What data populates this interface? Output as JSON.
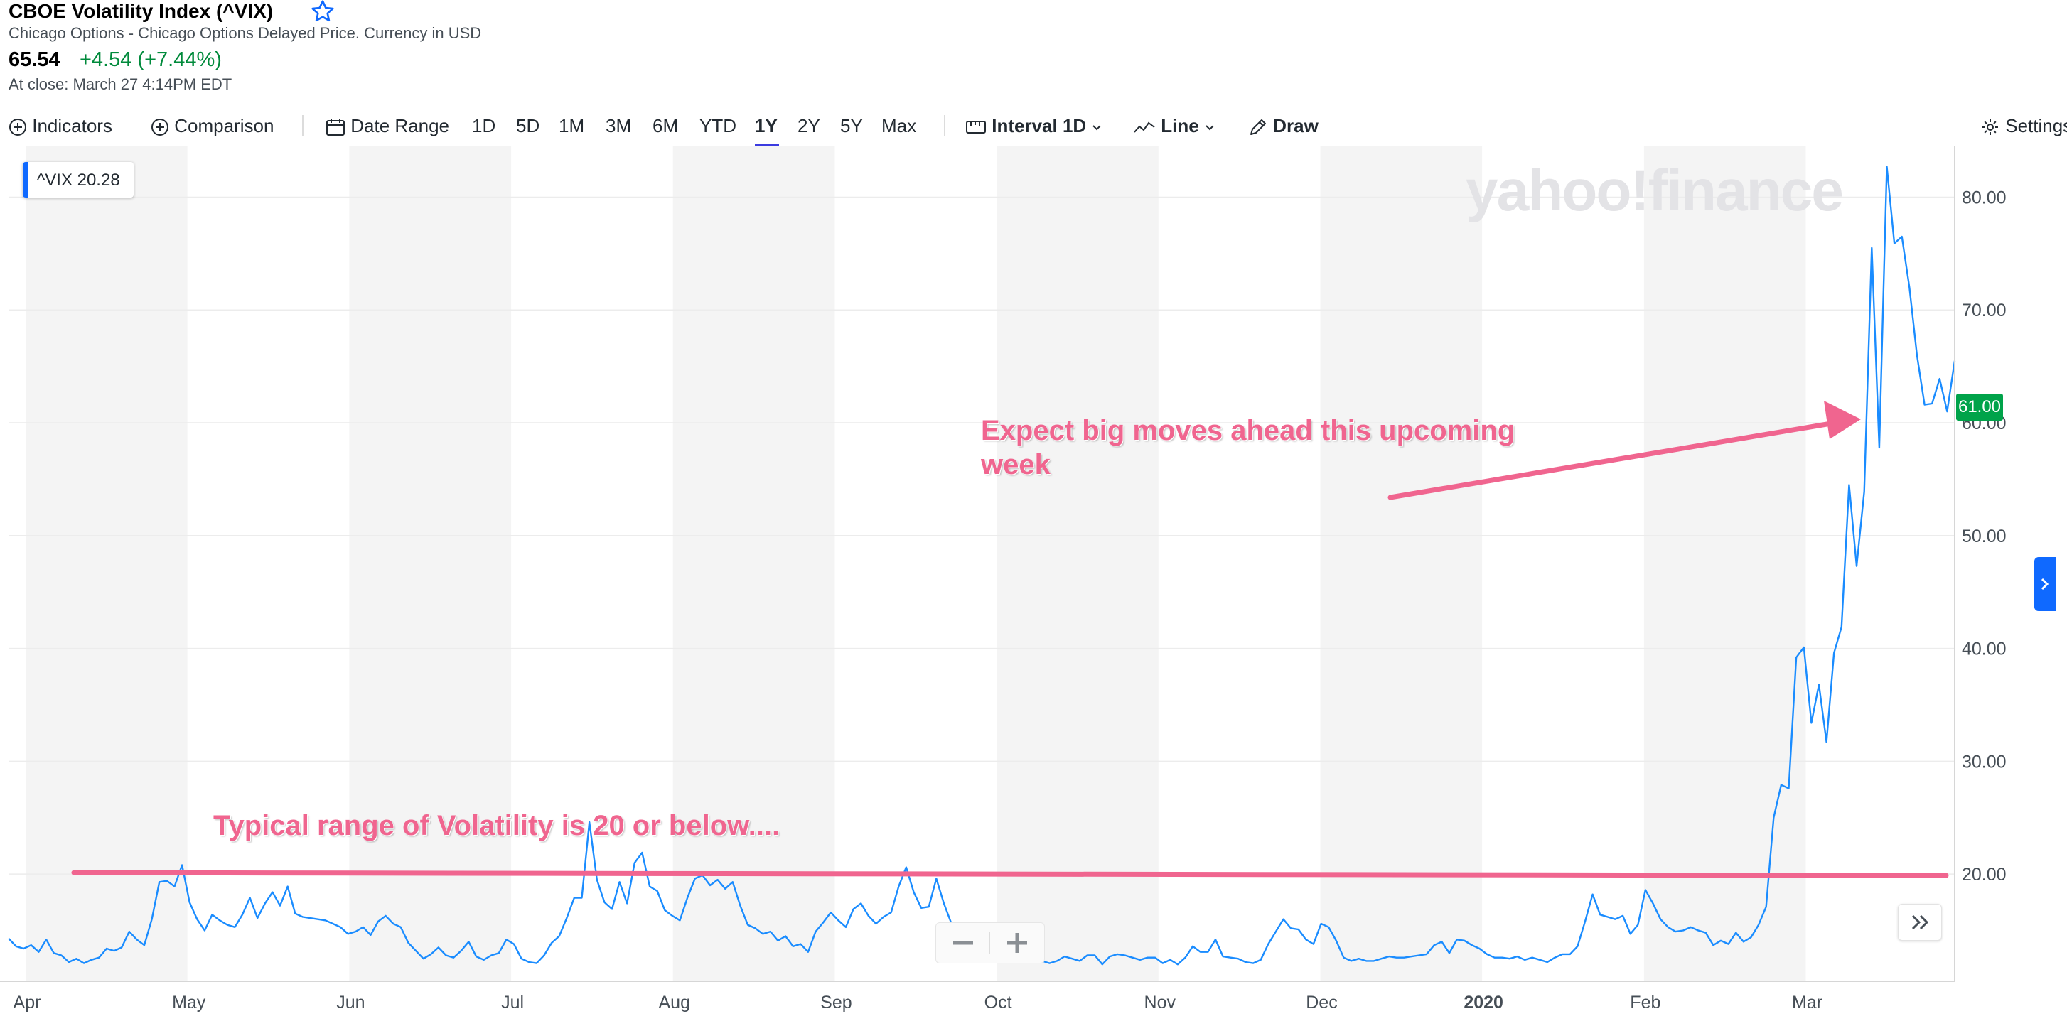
{
  "header": {
    "title": "CBOE Volatility Index (^VIX)",
    "subtitle": "Chicago Options - Chicago Options Delayed Price. Currency in USD",
    "price": "65.54",
    "change": "+4.54 (+7.44%)",
    "close_time": "At close: March 27 4:14PM EDT"
  },
  "toolbar": {
    "indicators": "Indicators",
    "comparison": "Comparison",
    "date_range": "Date Range",
    "ranges": [
      "1D",
      "5D",
      "1M",
      "3M",
      "6M",
      "YTD",
      "1Y",
      "2Y",
      "5Y",
      "Max"
    ],
    "active_range": "1Y",
    "interval_label": "Interval",
    "interval_value": "1D",
    "chart_type": "Line",
    "draw": "Draw",
    "settings": "Settings"
  },
  "legend": {
    "label": "^VIX 20.28"
  },
  "watermark": "yahoo!finance",
  "price_tag": "61.00",
  "annotations": {
    "upper": "Expect big moves ahead this upcoming week",
    "lower": "Typical range of Volatility is 20 or below...."
  },
  "colors": {
    "line": "#1a8cff",
    "annotation": "#f0658f",
    "up": "#008a3b",
    "accent": "#0f69ff"
  },
  "chart_data": {
    "type": "line",
    "x_labels": [
      "Apr",
      "May",
      "Jun",
      "Jul",
      "Aug",
      "Sep",
      "Oct",
      "Nov",
      "Dec",
      "2020",
      "Feb",
      "Mar"
    ],
    "y_ticks": [
      "20.00",
      "30.00",
      "40.00",
      "50.00",
      "60.00",
      "70.00",
      "80.00"
    ],
    "ylim": [
      10.5,
      84.5
    ],
    "reference_line": 20,
    "series": [
      {
        "values": [
          14.3,
          13.6,
          13.4,
          13.7,
          13.1,
          14.2,
          13.0,
          12.8,
          12.2,
          12.5,
          12.1,
          12.4,
          12.6,
          13.4,
          13.2,
          13.5,
          14.9,
          14.2,
          13.7,
          16.0,
          19.3,
          19.4,
          18.9,
          20.8,
          17.5,
          16.0,
          15.0,
          16.4,
          15.9,
          15.5,
          15.3,
          16.4,
          17.9,
          16.1,
          17.4,
          18.4,
          17.2,
          18.9,
          16.5,
          16.2,
          16.1,
          16.0,
          15.9,
          15.6,
          15.3,
          14.7,
          14.9,
          15.3,
          14.6,
          15.8,
          16.3,
          15.6,
          15.3,
          13.9,
          13.2,
          12.5,
          12.9,
          13.5,
          12.8,
          12.6,
          13.2,
          14.0,
          12.7,
          12.4,
          12.8,
          13.0,
          14.2,
          13.8,
          12.5,
          12.2,
          12.1,
          12.8,
          13.9,
          14.5,
          16.1,
          17.9,
          17.9,
          24.6,
          19.5,
          17.5,
          16.9,
          19.3,
          17.4,
          21.0,
          21.9,
          18.9,
          18.5,
          16.8,
          16.3,
          15.9,
          17.9,
          19.6,
          19.9,
          19.0,
          19.5,
          18.7,
          19.3,
          17.2,
          15.5,
          15.2,
          14.7,
          14.9,
          14.1,
          14.5,
          13.6,
          13.8,
          13.1,
          14.9,
          15.7,
          16.6,
          15.9,
          15.3,
          16.9,
          17.4,
          16.3,
          15.6,
          16.2,
          16.6,
          18.9,
          20.6,
          18.4,
          17.0,
          17.1,
          19.6,
          17.4,
          15.6,
          14.7,
          14.1,
          13.6,
          13.8,
          13.9,
          14.2,
          13.5,
          13.5,
          14.0,
          13.8,
          13.2,
          12.3,
          12.1,
          12.3,
          12.7,
          12.5,
          12.3,
          12.8,
          12.8,
          12.0,
          12.7,
          12.9,
          12.8,
          12.6,
          12.4,
          12.6,
          12.6,
          12.1,
          12.4,
          12.0,
          12.6,
          13.6,
          13.1,
          13.1,
          14.2,
          12.7,
          12.6,
          12.5,
          12.2,
          12.1,
          12.4,
          13.8,
          14.9,
          16.0,
          15.2,
          15.1,
          14.2,
          13.8,
          15.6,
          15.3,
          14.1,
          12.6,
          12.3,
          12.5,
          12.3,
          12.3,
          12.5,
          12.7,
          12.6,
          12.6,
          12.7,
          12.8,
          12.9,
          13.7,
          14.0,
          13.0,
          14.2,
          14.1,
          13.7,
          13.4,
          12.9,
          12.6,
          12.6,
          12.5,
          12.7,
          12.4,
          12.6,
          12.4,
          12.2,
          12.6,
          12.9,
          12.9,
          13.6,
          15.8,
          18.2,
          16.4,
          16.2,
          16.0,
          16.3,
          14.7,
          15.5,
          18.6,
          17.4,
          16.0,
          15.3,
          14.9,
          15.0,
          15.3,
          15.0,
          14.8,
          13.7,
          14.1,
          13.8,
          14.8,
          14.0,
          14.4,
          15.5,
          17.1,
          25.0,
          27.9,
          27.6,
          39.2,
          40.1,
          33.4,
          36.8,
          31.7,
          39.6,
          41.9,
          54.5,
          47.3,
          53.9,
          75.5,
          57.8,
          82.7,
          75.9,
          76.5,
          72.0,
          66.0,
          61.6,
          61.7,
          63.9,
          61.0,
          65.5
        ]
      }
    ]
  }
}
